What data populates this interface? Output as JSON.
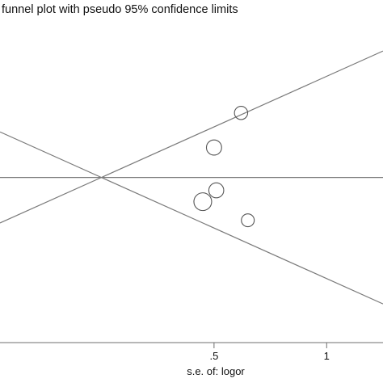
{
  "chart_data": {
    "type": "scatter",
    "title": "funnel plot with pseudo 95% confidence limits",
    "xlabel": "s.e. of: logor",
    "ylabel": "",
    "xlim": [
      -0.45,
      1.25
    ],
    "ylim": [
      -3.2,
      3.0
    ],
    "xticks": [
      {
        "value": 0.5,
        "label": ".5"
      },
      {
        "value": 1,
        "label": "1"
      }
    ],
    "center_value": 0,
    "confidence_multiplier": 1.96,
    "points": [
      {
        "x": 0.62,
        "y": 1.25,
        "size": 0.65
      },
      {
        "x": 0.5,
        "y": 0.58,
        "size": 0.8
      },
      {
        "x": 0.51,
        "y": -0.25,
        "size": 0.78
      },
      {
        "x": 0.45,
        "y": -0.47,
        "size": 1.0
      },
      {
        "x": 0.65,
        "y": -0.83,
        "size": 0.62
      }
    ],
    "grid": false,
    "legend": "none",
    "colors": {
      "lines": "#7a7a7a",
      "axis": "#6f6f6f",
      "markers": "#555555",
      "text": "#111111"
    }
  }
}
